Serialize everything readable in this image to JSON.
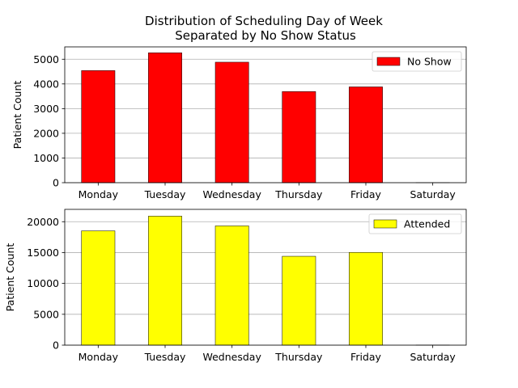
{
  "chart_data": {
    "title_line1": "Distribution of Scheduling Day of Week",
    "title_line2": "Separated by No Show Status",
    "type": "bar",
    "categories": [
      "Monday",
      "Tuesday",
      "Wednesday",
      "Thursday",
      "Friday",
      "Saturday"
    ],
    "panels": [
      {
        "ylabel": "Patient Count",
        "ylim": [
          0,
          5500
        ],
        "yticks": [
          0,
          1000,
          2000,
          3000,
          4000,
          5000
        ],
        "grid": "y",
        "legend_position": "top-right",
        "series": [
          {
            "name": "No Show",
            "color": "#ff0000",
            "values": [
              4540,
              5260,
              4880,
              3690,
              3880,
              2
            ]
          }
        ]
      },
      {
        "ylabel": "Patient Count",
        "ylim": [
          0,
          22000
        ],
        "yticks": [
          0,
          5000,
          10000,
          15000,
          20000
        ],
        "grid": "y",
        "legend_position": "top-right",
        "series": [
          {
            "name": "Attended",
            "color": "#ffff00",
            "values": [
              18520,
              20900,
              19320,
              14400,
              15030,
              22
            ]
          }
        ]
      }
    ]
  }
}
